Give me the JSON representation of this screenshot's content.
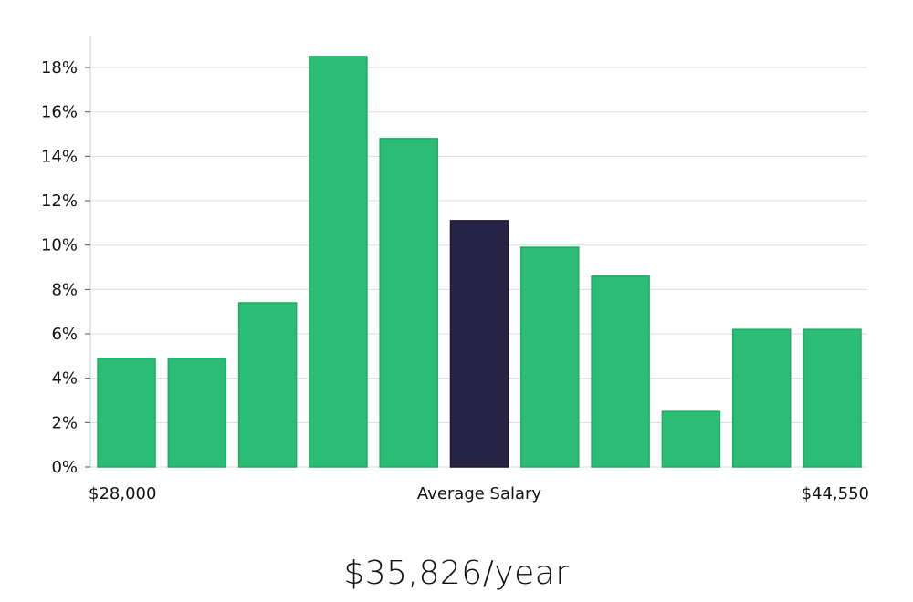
{
  "chart_data": {
    "type": "bar",
    "values": [
      4.9,
      4.9,
      7.4,
      18.5,
      14.8,
      11.1,
      9.9,
      8.6,
      2.5,
      6.2,
      6.2
    ],
    "highlight_index": 5,
    "ylim": [
      0,
      19.4
    ],
    "y_ticks": [
      {
        "value": 0,
        "label": "0%"
      },
      {
        "value": 2,
        "label": "2%"
      },
      {
        "value": 4,
        "label": "4%"
      },
      {
        "value": 6,
        "label": "6%"
      },
      {
        "value": 8,
        "label": "8%"
      },
      {
        "value": 10,
        "label": "10%"
      },
      {
        "value": 12,
        "label": "12%"
      },
      {
        "value": 14,
        "label": "14%"
      },
      {
        "value": 16,
        "label": "16%"
      },
      {
        "value": 18,
        "label": "18%"
      }
    ],
    "x_labels": {
      "left": "$28,000",
      "center": "Average Salary",
      "right": "$44,550"
    },
    "grid": true,
    "colors": {
      "bar": "#2bbd73",
      "bar_edge": "#22a862",
      "highlight": "#282446",
      "grid": "#dddddd",
      "axis": "#cccccc"
    }
  },
  "headline": "$35,826/year"
}
